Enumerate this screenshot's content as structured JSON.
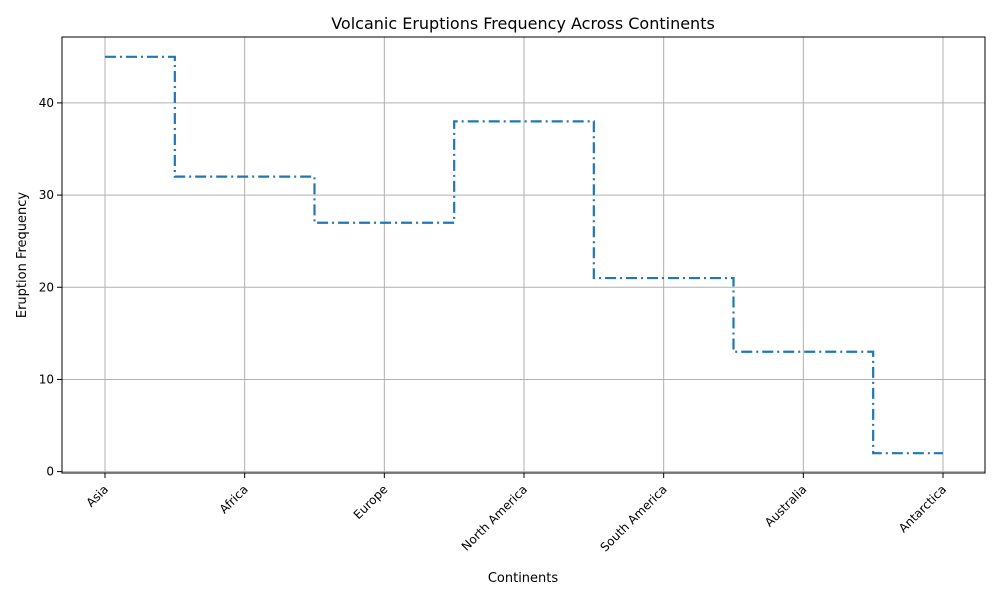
{
  "chart_data": {
    "type": "line",
    "style": "step",
    "title": "Volcanic Eruptions Frequency Across Continents",
    "xlabel": "Continents",
    "ylabel": "Eruption Frequency",
    "categories": [
      "Asia",
      "Africa",
      "Europe",
      "North America",
      "South America",
      "Australia",
      "Antarctica"
    ],
    "series": [
      {
        "values": [
          45,
          32,
          27,
          38,
          21,
          13,
          2
        ]
      }
    ],
    "yticks": [
      0,
      10,
      20,
      30,
      40
    ],
    "ylim": [
      -0.15,
      47.15
    ],
    "grid": true,
    "legend": "none",
    "line_color": "#1f77b4",
    "line_style": "dash-dot"
  }
}
